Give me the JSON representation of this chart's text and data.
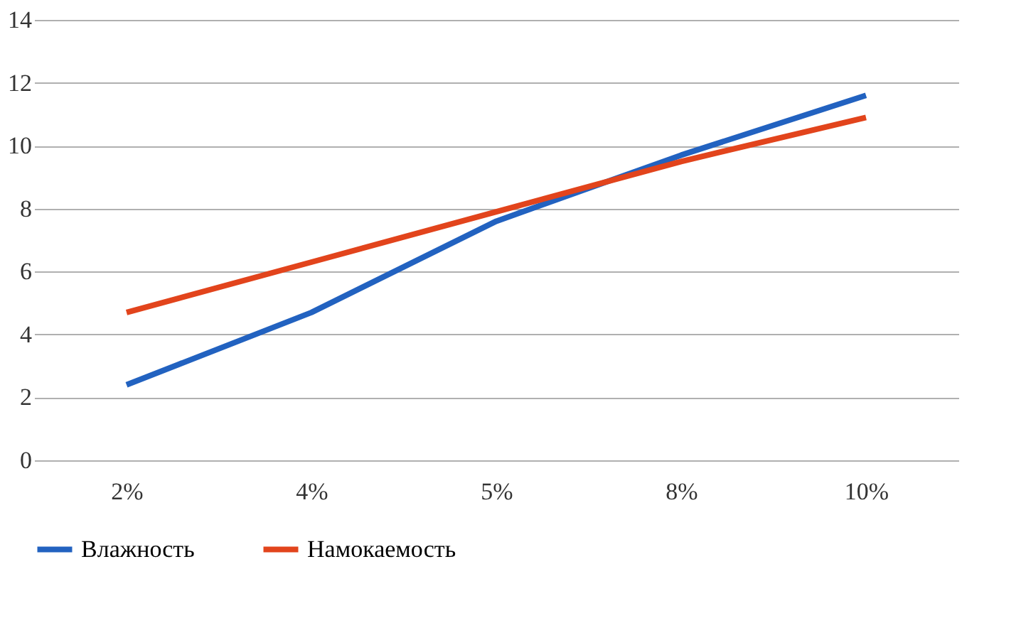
{
  "chart_data": {
    "type": "line",
    "categories": [
      "2%",
      "4%",
      "5%",
      "8%",
      "10%"
    ],
    "series": [
      {
        "name": "Влажность",
        "color": "#2262c0",
        "values": [
          2.4,
          4.7,
          7.6,
          9.7,
          11.6
        ]
      },
      {
        "name": "Намокаемость",
        "color": "#e2441c",
        "values": [
          4.7,
          6.3,
          7.9,
          9.5,
          10.9
        ]
      }
    ],
    "ylim": [
      0,
      14
    ],
    "yticks": [
      0,
      2,
      4,
      6,
      8,
      10,
      12,
      14
    ],
    "grid": "y",
    "legend": "bottom",
    "marker": "none",
    "line_style": "solid"
  }
}
